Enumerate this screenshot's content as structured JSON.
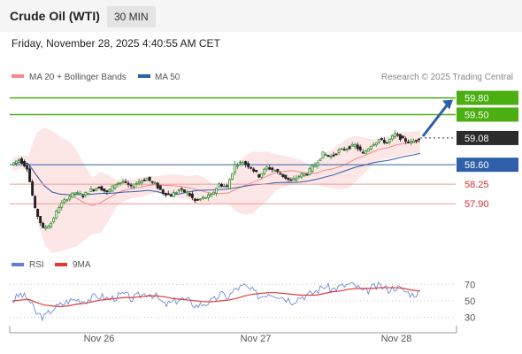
{
  "header": {
    "title": "Crude Oil (WTI)",
    "timeframe": "30 MIN"
  },
  "datetime": "Friday, November 28, 2025 4:40:55 AM CET",
  "colors": {
    "green": "#4caf11",
    "blue": "#2f5fa8",
    "red": "#e53935",
    "dark": "#2b2b2b",
    "candle_up": "#2e8b2e",
    "candle_down": "#222222",
    "bands": "#fde3e3"
  },
  "chart_data": [
    {
      "type": "candlestick",
      "legend": [
        {
          "name": "MA 20 + Bollinger Bands",
          "color": "#f08a8a"
        },
        {
          "name": "MA 50",
          "color": "#2f5fa8"
        }
      ],
      "credit": "Research © 2025 Trading Central",
      "ylim": [
        57.3,
        60.0
      ],
      "x_ticks": [
        "Nov 26",
        "Nov 27",
        "Nov 28"
      ],
      "levels": [
        {
          "value": 59.8,
          "label": "59.80",
          "style": "green-tag"
        },
        {
          "value": 59.5,
          "label": "59.50",
          "style": "green-tag"
        },
        {
          "value": 59.08,
          "label": "59.08",
          "style": "dark-tag"
        },
        {
          "value": 58.6,
          "label": "58.60",
          "style": "blue-tag"
        },
        {
          "value": 58.25,
          "label": "58.25",
          "style": "red-text"
        },
        {
          "value": 57.9,
          "label": "57.90",
          "style": "red-text"
        }
      ],
      "price_path": [
        58.6,
        58.7,
        58.55,
        57.8,
        57.45,
        57.55,
        57.85,
        58.0,
        58.1,
        58.05,
        58.15,
        58.2,
        58.1,
        58.25,
        58.3,
        58.2,
        58.3,
        58.35,
        58.25,
        58.1,
        58.05,
        58.15,
        58.1,
        57.95,
        58.0,
        58.05,
        58.25,
        58.2,
        58.6,
        58.65,
        58.55,
        58.4,
        58.55,
        58.5,
        58.4,
        58.3,
        58.4,
        58.45,
        58.6,
        58.8,
        58.75,
        58.85,
        58.9,
        58.95,
        58.8,
        58.95,
        59.05,
        59.0,
        59.15,
        59.05,
        59.0,
        59.08
      ],
      "arrow": {
        "from": 59.08,
        "to": 59.8
      }
    },
    {
      "type": "line",
      "legend": [
        {
          "name": "RSI",
          "color": "#5b7fd6"
        },
        {
          "name": "9MA",
          "color": "#e53935"
        }
      ],
      "ylim": [
        20,
        80
      ],
      "y_ticks": [
        70,
        50,
        30
      ],
      "rsi": [
        50,
        58,
        52,
        35,
        30,
        40,
        45,
        50,
        52,
        50,
        54,
        56,
        52,
        55,
        58,
        52,
        57,
        60,
        55,
        45,
        48,
        53,
        50,
        44,
        47,
        49,
        58,
        55,
        65,
        68,
        62,
        55,
        60,
        58,
        54,
        50,
        55,
        57,
        62,
        68,
        64,
        67,
        70,
        68,
        60,
        66,
        68,
        64,
        67,
        62,
        58,
        60
      ],
      "rsi_ma": [
        50,
        51,
        52,
        48,
        45,
        44,
        43,
        44,
        46,
        47,
        49,
        51,
        52,
        53,
        54,
        54,
        55,
        56,
        56,
        55,
        53,
        52,
        51,
        50,
        49,
        49,
        50,
        51,
        53,
        56,
        58,
        59,
        60,
        60,
        59,
        58,
        57,
        57,
        57,
        59,
        61,
        62,
        64,
        65,
        65,
        65,
        66,
        66,
        66,
        65,
        63,
        62
      ]
    }
  ]
}
